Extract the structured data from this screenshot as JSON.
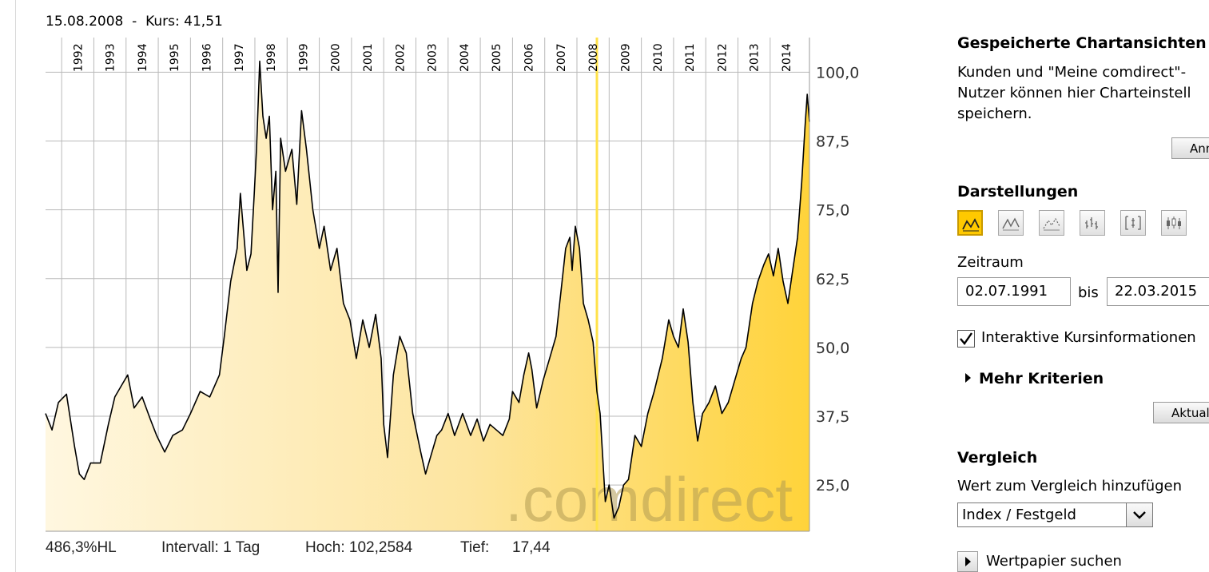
{
  "tooltip": {
    "date": "15.08.2008",
    "sep": "-",
    "price_label": "Kurs:",
    "price": "41,51"
  },
  "chart_data": {
    "type": "area",
    "x_axis": {
      "labels": [
        "1992",
        "1993",
        "1994",
        "1995",
        "1996",
        "1997",
        "1998",
        "1999",
        "2000",
        "2001",
        "2002",
        "2003",
        "2004",
        "2005",
        "2006",
        "2007",
        "2008",
        "2009",
        "2010",
        "2011",
        "2012",
        "2013",
        "2014"
      ]
    },
    "y_axis": {
      "ticks": [
        "100,0",
        "87,5",
        "75,0",
        "62,5",
        "50,0",
        "37,5",
        "25,0"
      ],
      "tick_values": [
        100,
        87.5,
        75,
        62.5,
        50,
        37.5,
        25
      ],
      "range": [
        16.6,
        106.3
      ]
    },
    "x_range": [
      1991.5,
      2015.22
    ],
    "grid": true,
    "highlight_x": 2008.62,
    "watermark": ".comdirect",
    "series": [
      {
        "points": [
          [
            1991.5,
            38
          ],
          [
            1991.7,
            35
          ],
          [
            1991.9,
            40
          ],
          [
            1992.15,
            41.5
          ],
          [
            1992.4,
            32
          ],
          [
            1992.55,
            27
          ],
          [
            1992.7,
            26
          ],
          [
            1992.9,
            29
          ],
          [
            1993.2,
            29
          ],
          [
            1993.45,
            36
          ],
          [
            1993.65,
            41
          ],
          [
            1993.85,
            43
          ],
          [
            1994.05,
            45
          ],
          [
            1994.25,
            39
          ],
          [
            1994.5,
            41
          ],
          [
            1994.75,
            37
          ],
          [
            1994.95,
            34
          ],
          [
            1995.2,
            31
          ],
          [
            1995.45,
            34
          ],
          [
            1995.75,
            35
          ],
          [
            1996.0,
            38
          ],
          [
            1996.3,
            42
          ],
          [
            1996.6,
            41
          ],
          [
            1996.9,
            45
          ],
          [
            1997.05,
            52
          ],
          [
            1997.25,
            62
          ],
          [
            1997.45,
            68
          ],
          [
            1997.55,
            78
          ],
          [
            1997.75,
            64
          ],
          [
            1997.88,
            67
          ],
          [
            1997.98,
            78
          ],
          [
            1998.05,
            86
          ],
          [
            1998.15,
            102
          ],
          [
            1998.25,
            92
          ],
          [
            1998.35,
            88
          ],
          [
            1998.45,
            92
          ],
          [
            1998.55,
            75
          ],
          [
            1998.65,
            82
          ],
          [
            1998.72,
            60
          ],
          [
            1998.8,
            88
          ],
          [
            1998.95,
            82
          ],
          [
            1999.15,
            86
          ],
          [
            1999.3,
            76
          ],
          [
            1999.45,
            93
          ],
          [
            1999.6,
            86
          ],
          [
            1999.8,
            75
          ],
          [
            2000.0,
            68
          ],
          [
            2000.15,
            72
          ],
          [
            2000.35,
            64
          ],
          [
            2000.55,
            68
          ],
          [
            2000.75,
            58
          ],
          [
            2000.95,
            55
          ],
          [
            2001.15,
            48
          ],
          [
            2001.35,
            55
          ],
          [
            2001.55,
            50
          ],
          [
            2001.75,
            56
          ],
          [
            2001.92,
            48
          ],
          [
            2002.0,
            36
          ],
          [
            2002.12,
            30
          ],
          [
            2002.3,
            45
          ],
          [
            2002.5,
            52
          ],
          [
            2002.7,
            49
          ],
          [
            2002.9,
            38
          ],
          [
            2003.15,
            31
          ],
          [
            2003.3,
            27
          ],
          [
            2003.45,
            30
          ],
          [
            2003.65,
            34
          ],
          [
            2003.8,
            35
          ],
          [
            2004.0,
            38
          ],
          [
            2004.2,
            34
          ],
          [
            2004.45,
            38
          ],
          [
            2004.7,
            34
          ],
          [
            2004.9,
            37
          ],
          [
            2005.1,
            33
          ],
          [
            2005.3,
            36
          ],
          [
            2005.5,
            35
          ],
          [
            2005.7,
            34
          ],
          [
            2005.9,
            37
          ],
          [
            2006.0,
            42
          ],
          [
            2006.2,
            40
          ],
          [
            2006.35,
            45
          ],
          [
            2006.5,
            49
          ],
          [
            2006.6,
            46
          ],
          [
            2006.75,
            39
          ],
          [
            2006.95,
            44
          ],
          [
            2007.15,
            48
          ],
          [
            2007.35,
            52
          ],
          [
            2007.5,
            60
          ],
          [
            2007.65,
            68
          ],
          [
            2007.78,
            70
          ],
          [
            2007.85,
            64
          ],
          [
            2007.95,
            72
          ],
          [
            2008.08,
            68
          ],
          [
            2008.2,
            58
          ],
          [
            2008.35,
            55
          ],
          [
            2008.5,
            51
          ],
          [
            2008.62,
            42
          ],
          [
            2008.72,
            38
          ],
          [
            2008.8,
            30
          ],
          [
            2008.88,
            22
          ],
          [
            2009.0,
            25
          ],
          [
            2009.15,
            19
          ],
          [
            2009.3,
            21
          ],
          [
            2009.45,
            25
          ],
          [
            2009.6,
            26
          ],
          [
            2009.8,
            34
          ],
          [
            2010.0,
            32
          ],
          [
            2010.2,
            38
          ],
          [
            2010.4,
            42
          ],
          [
            2010.65,
            48
          ],
          [
            2010.85,
            55
          ],
          [
            2011.0,
            52
          ],
          [
            2011.15,
            50
          ],
          [
            2011.3,
            57
          ],
          [
            2011.45,
            51
          ],
          [
            2011.6,
            40
          ],
          [
            2011.75,
            33
          ],
          [
            2011.9,
            38
          ],
          [
            2012.1,
            40
          ],
          [
            2012.3,
            43
          ],
          [
            2012.5,
            38
          ],
          [
            2012.7,
            40
          ],
          [
            2012.9,
            44
          ],
          [
            2013.1,
            48
          ],
          [
            2013.25,
            50
          ],
          [
            2013.45,
            58
          ],
          [
            2013.62,
            62
          ],
          [
            2013.8,
            65
          ],
          [
            2013.95,
            67
          ],
          [
            2014.1,
            63
          ],
          [
            2014.25,
            68
          ],
          [
            2014.4,
            62
          ],
          [
            2014.55,
            58
          ],
          [
            2014.7,
            64
          ],
          [
            2014.85,
            70
          ],
          [
            2014.98,
            80
          ],
          [
            2015.08,
            90
          ],
          [
            2015.15,
            96
          ],
          [
            2015.22,
            91
          ]
        ]
      }
    ]
  },
  "footer": {
    "perf": "486,3%HL",
    "interval": "Intervall: 1 Tag",
    "high": "Hoch: 102,2584",
    "low_label": "Tief:",
    "low": "17,44"
  },
  "sidebar": {
    "saved_title": "Gespeicherte Chartansichten",
    "saved_text": [
      "Kunden und \"Meine comdirect\"-",
      "Nutzer können hier Charteinstell",
      "speichern."
    ],
    "login_button": "Anmelden",
    "display_title": "Darstellungen",
    "display_modes": [
      "area-chart-icon",
      "line-chart-icon",
      "dot-line-chart-icon",
      "ohlc-chart-icon",
      "bar-chart-icon",
      "candlestick-chart-icon"
    ],
    "period_label": "Zeitraum",
    "date_from": "02.07.1991",
    "until_label": "bis",
    "date_to": "22.03.2015",
    "interactive_label": "Interaktive Kursinformationen",
    "more_criteria": "Mehr Kriterien",
    "update_button": "Aktualisieren",
    "compare_title": "Vergleich",
    "compare_text": "Wert zum Vergleich hinzufügen",
    "compare_select": "Index / Festgeld",
    "search_security": "Wertpapier suchen"
  },
  "colors": {
    "accent": "#ffc900",
    "highlight": "#ffe24a",
    "grid": "#b9b9b9",
    "line": "#000000"
  }
}
